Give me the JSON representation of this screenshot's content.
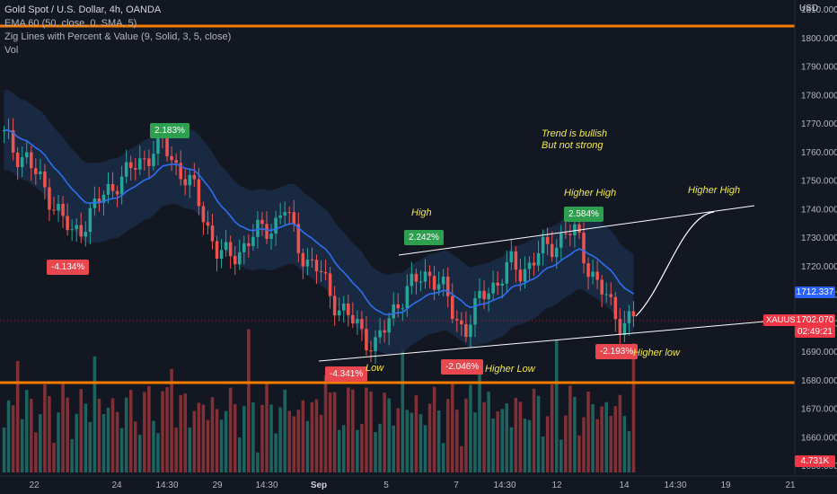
{
  "legend": {
    "title": "Gold Spot / U.S. Dollar, 4h, OANDA",
    "ema": "EMA  60 (50, close, 0, SMA, 5)",
    "zigzag": "Zig Lines with Percent & Value (9, Solid, 3, 5, close)",
    "vol": "Vol"
  },
  "axis": {
    "currency": "USD",
    "price_ticks": [
      "1810.000",
      "1800.000",
      "1790.000",
      "1780.000",
      "1770.000",
      "1760.000",
      "1750.000",
      "1740.000",
      "1730.000",
      "1720.000",
      "1710.000",
      "1700.000",
      "1690.000",
      "1680.000",
      "1670.000",
      "1660.000",
      "1650.000"
    ],
    "time_ticks": [
      "22",
      "24",
      "14:30",
      "29",
      "14:30",
      "Sep",
      "5",
      "7",
      "14:30",
      "12",
      "14",
      "14:30",
      "19",
      "21"
    ]
  },
  "tags": {
    "ema_value": "1712.337",
    "symbol": "XAUUSD",
    "last_price": "1702.070",
    "countdown": "02:49:21",
    "top_line": "1808.000",
    "bottom_line": "1680.000",
    "volume": "4.731K"
  },
  "zigzag_labels": [
    {
      "text": "2.183%",
      "dir": "up"
    },
    {
      "text": "-4.134%",
      "dir": "down"
    },
    {
      "text": "-4.341%",
      "dir": "down"
    },
    {
      "text": "2.242%",
      "dir": "up"
    },
    {
      "text": "-2.046%",
      "dir": "down"
    },
    {
      "text": "2.584%",
      "dir": "up"
    },
    {
      "text": "-2.193%",
      "dir": "down"
    }
  ],
  "annotations": {
    "trend1": "Trend is bullish",
    "trend2": "But not strong",
    "high": "High",
    "higher_high": "Higher High",
    "higher_high_proj": "Higher High",
    "low": "Low",
    "higher_low": "Higher Low",
    "higher_low2": "Higher low"
  },
  "colors": {
    "background": "#131722",
    "up": "#26a69a",
    "down": "#ef5350",
    "ema": "#2f6ff0",
    "band": "#1b2b45",
    "horizontal": "#f57c00",
    "annotation": "#f2ea4b",
    "trendline": "#ffffff"
  },
  "chart_data": {
    "type": "candlestick",
    "symbol": "XAUUSD",
    "interval": "4h",
    "ohlc_close_approx": [
      1765,
      1760,
      1758,
      1750,
      1745,
      1738,
      1730,
      1735,
      1740,
      1745,
      1750,
      1752,
      1756,
      1760,
      1763,
      1757,
      1752,
      1745,
      1735,
      1725,
      1722,
      1726,
      1730,
      1732,
      1735,
      1740,
      1728,
      1722,
      1718,
      1710,
      1705,
      1700,
      1696,
      1692,
      1698,
      1708,
      1712,
      1715,
      1718,
      1712,
      1702,
      1698,
      1705,
      1712,
      1715,
      1720,
      1718,
      1722,
      1725,
      1728,
      1732,
      1730,
      1720,
      1712,
      1705,
      1700,
      1702
    ],
    "ema_last": 1712.337,
    "last_price": 1702.07
  }
}
